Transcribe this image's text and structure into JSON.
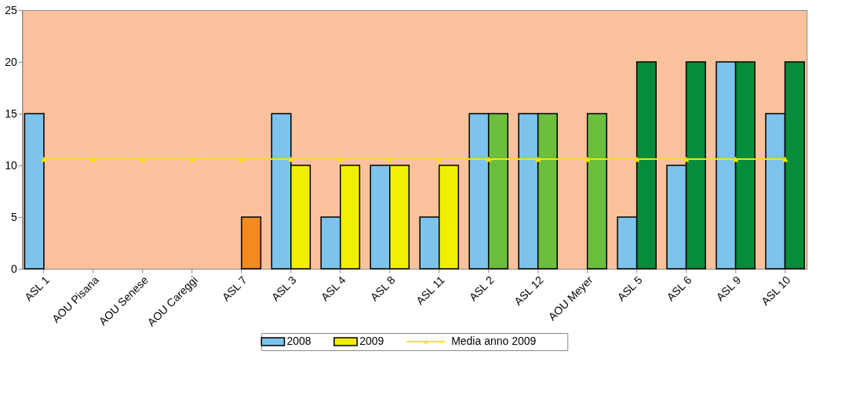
{
  "chart_data": {
    "type": "bar",
    "categories": [
      "ASL 1",
      "AOU Pisana",
      "AOU Senese",
      "AOU Careggi",
      "ASL 7",
      "ASL 3",
      "ASL 4",
      "ASL 8",
      "ASL 11",
      "ASL 2",
      "ASL 12",
      "AOU Meyer",
      "ASL 5",
      "ASL 6",
      "ASL 9",
      "ASL 10"
    ],
    "series": [
      {
        "name": "2008",
        "color": "#7cc4ec",
        "values": [
          15,
          null,
          null,
          null,
          null,
          15,
          5,
          10,
          5,
          15,
          15,
          null,
          5,
          10,
          20,
          15
        ]
      },
      {
        "name": "2009",
        "color": "#f2ee00",
        "colors": [
          "#f2ee00",
          "#f2ee00",
          "#f2ee00",
          "#f2ee00",
          "#f28a1e",
          "#f2ee00",
          "#f2ee00",
          "#f2ee00",
          "#f2ee00",
          "#6cbf3c",
          "#6cbf3c",
          "#6cbf3c",
          "#078c3c",
          "#078c3c",
          "#078c3c",
          "#078c3c"
        ],
        "values": [
          null,
          null,
          null,
          null,
          5,
          10,
          10,
          10,
          10,
          15,
          15,
          15,
          20,
          20,
          20,
          20
        ]
      },
      {
        "name": "Media anno 2009",
        "type": "line",
        "color": "#f5e400",
        "marker": "triangle",
        "values": [
          10.6,
          10.6,
          10.6,
          10.6,
          10.6,
          10.6,
          10.6,
          10.6,
          10.6,
          10.6,
          10.6,
          10.6,
          10.6,
          10.6,
          10.6,
          10.6
        ]
      }
    ],
    "ylim": [
      0,
      25
    ],
    "yticks": [
      0,
      5,
      10,
      15,
      20,
      25
    ],
    "grid": false,
    "legend": "bottom"
  }
}
